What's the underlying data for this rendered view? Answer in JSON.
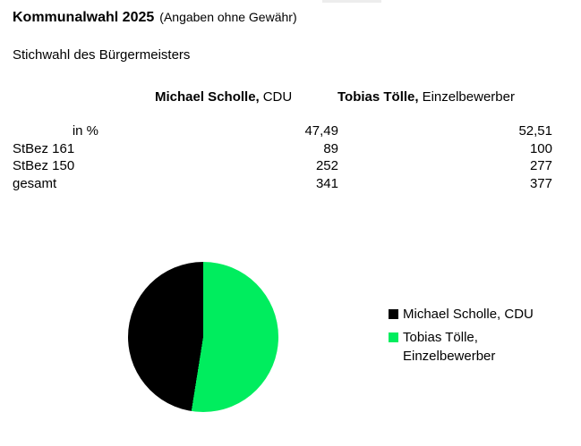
{
  "header": {
    "title": "Kommunalwahl 2025",
    "disclaimer": "(Angaben ohne Gewähr)",
    "subtitle": "Stichwahl des Bürgermeisters"
  },
  "table": {
    "columns": [
      {
        "candidate": "Michael Scholle,",
        "affiliation": "CDU"
      },
      {
        "candidate": "Tobias Tölle,",
        "affiliation": "Einzelbewerber"
      }
    ],
    "rows": [
      {
        "label": "in %",
        "values": [
          "47,49",
          "52,51"
        ]
      },
      {
        "label": "StBez 161",
        "values": [
          "89",
          "100"
        ]
      },
      {
        "label": "StBez 150",
        "values": [
          "252",
          "277"
        ]
      },
      {
        "label": "gesamt",
        "values": [
          "341",
          "377"
        ]
      }
    ]
  },
  "chart_data": {
    "type": "pie",
    "title": "",
    "labels": [
      "Michael Scholle, CDU",
      "Tobias Tölle, Einzelbewerber"
    ],
    "values": [
      47.49,
      52.51
    ],
    "total_votes": [
      341,
      377
    ],
    "colors": [
      "#000000",
      "#00ed5e"
    ],
    "draw_order": [
      1,
      0
    ],
    "start_angle_deg": 0,
    "direction": "clockwise",
    "legend_position": "right"
  }
}
